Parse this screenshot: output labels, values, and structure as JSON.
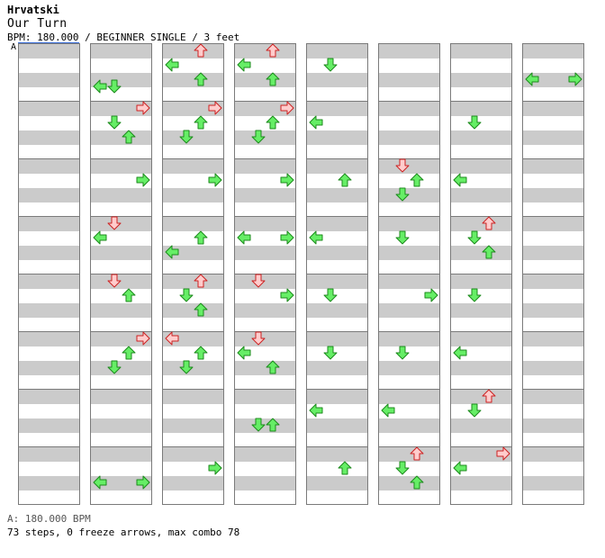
{
  "header": {
    "artist": "Hrvatski",
    "title": "Our Turn",
    "subtitle": "BPM: 180.000 / BEGINNER SINGLE / 3 feet",
    "marker": "A"
  },
  "footer": {
    "bpm_line": "A: 180.000 BPM",
    "stats": "73 steps, 0 freeze arrows, max combo 78"
  },
  "colors": {
    "quarter_fill": "#66ee66",
    "quarter_stroke": "#1c8a1c",
    "eighth_fill": "#ffcccc",
    "eighth_stroke": "#cc2222",
    "stripe": "#cbcbcb",
    "border": "#7a7a7a"
  },
  "chart_data": {
    "type": "step-chart",
    "columns": 8,
    "measures_per_column": 8,
    "lanes": [
      "left",
      "down",
      "up",
      "right"
    ],
    "notes": [
      {
        "col": 0,
        "m": 0,
        "t": 0,
        "arrows": "none"
      },
      {
        "col": 1,
        "m": 0,
        "t": 3,
        "arrows": "L,D",
        "type": "q"
      },
      {
        "col": 1,
        "m": 1,
        "t": 0.5,
        "arrows": "R",
        "type": "e"
      },
      {
        "col": 1,
        "m": 1,
        "t": 1.5,
        "arrows": "D",
        "type": "q"
      },
      {
        "col": 1,
        "m": 1,
        "t": 2.5,
        "arrows": "U",
        "type": "q"
      },
      {
        "col": 1,
        "m": 2,
        "t": 1.5,
        "arrows": "R",
        "type": "q"
      },
      {
        "col": 1,
        "m": 3,
        "t": 0.5,
        "arrows": "D",
        "type": "e"
      },
      {
        "col": 1,
        "m": 3,
        "t": 1.5,
        "arrows": "L",
        "type": "q"
      },
      {
        "col": 1,
        "m": 4,
        "t": 0.5,
        "arrows": "D",
        "type": "e"
      },
      {
        "col": 1,
        "m": 4,
        "t": 1.5,
        "arrows": "U",
        "type": "q"
      },
      {
        "col": 1,
        "m": 5,
        "t": 0.5,
        "arrows": "R",
        "type": "e"
      },
      {
        "col": 1,
        "m": 5,
        "t": 1.5,
        "arrows": "U",
        "type": "q"
      },
      {
        "col": 1,
        "m": 5,
        "t": 2.5,
        "arrows": "D",
        "type": "q"
      },
      {
        "col": 1,
        "m": 7,
        "t": 2.5,
        "arrows": "L,R",
        "type": "q"
      },
      {
        "col": 2,
        "m": 0,
        "t": 0.5,
        "arrows": "U",
        "type": "e"
      },
      {
        "col": 2,
        "m": 0,
        "t": 1.5,
        "arrows": "L",
        "type": "q"
      },
      {
        "col": 2,
        "m": 0,
        "t": 2.5,
        "arrows": "U",
        "type": "q"
      },
      {
        "col": 2,
        "m": 1,
        "t": 0.5,
        "arrows": "R",
        "type": "e"
      },
      {
        "col": 2,
        "m": 1,
        "t": 1.5,
        "arrows": "U",
        "type": "q"
      },
      {
        "col": 2,
        "m": 1,
        "t": 2.5,
        "arrows": "D",
        "type": "q"
      },
      {
        "col": 2,
        "m": 2,
        "t": 1.5,
        "arrows": "R",
        "type": "q"
      },
      {
        "col": 2,
        "m": 3,
        "t": 1.5,
        "arrows": "U",
        "type": "q"
      },
      {
        "col": 2,
        "m": 3,
        "t": 2.5,
        "arrows": "L",
        "type": "q"
      },
      {
        "col": 2,
        "m": 4,
        "t": 0.5,
        "arrows": "U",
        "type": "e"
      },
      {
        "col": 2,
        "m": 4,
        "t": 1.5,
        "arrows": "D",
        "type": "q"
      },
      {
        "col": 2,
        "m": 4,
        "t": 2.5,
        "arrows": "U",
        "type": "q"
      },
      {
        "col": 2,
        "m": 5,
        "t": 0.5,
        "arrows": "L",
        "type": "e"
      },
      {
        "col": 2,
        "m": 5,
        "t": 1.5,
        "arrows": "U",
        "type": "q"
      },
      {
        "col": 2,
        "m": 5,
        "t": 2.5,
        "arrows": "D",
        "type": "q"
      },
      {
        "col": 2,
        "m": 7,
        "t": 1.5,
        "arrows": "R",
        "type": "q"
      },
      {
        "col": 3,
        "m": 0,
        "t": 0.5,
        "arrows": "U",
        "type": "e"
      },
      {
        "col": 3,
        "m": 0,
        "t": 1.5,
        "arrows": "L",
        "type": "q"
      },
      {
        "col": 3,
        "m": 0,
        "t": 2.5,
        "arrows": "U",
        "type": "q"
      },
      {
        "col": 3,
        "m": 1,
        "t": 0.5,
        "arrows": "R",
        "type": "e"
      },
      {
        "col": 3,
        "m": 1,
        "t": 1.5,
        "arrows": "U",
        "type": "q"
      },
      {
        "col": 3,
        "m": 1,
        "t": 2.5,
        "arrows": "D",
        "type": "q"
      },
      {
        "col": 3,
        "m": 2,
        "t": 1.5,
        "arrows": "R",
        "type": "q"
      },
      {
        "col": 3,
        "m": 3,
        "t": 1.5,
        "arrows": "L,R",
        "type": "q"
      },
      {
        "col": 3,
        "m": 4,
        "t": 0.5,
        "arrows": "D",
        "type": "e"
      },
      {
        "col": 3,
        "m": 4,
        "t": 1.5,
        "arrows": "R",
        "type": "q"
      },
      {
        "col": 3,
        "m": 5,
        "t": 0.5,
        "arrows": "D",
        "type": "e"
      },
      {
        "col": 3,
        "m": 5,
        "t": 1.5,
        "arrows": "L",
        "type": "q"
      },
      {
        "col": 3,
        "m": 5,
        "t": 2.5,
        "arrows": "U",
        "type": "q"
      },
      {
        "col": 3,
        "m": 6,
        "t": 2.5,
        "arrows": "D,U",
        "type": "q"
      },
      {
        "col": 4,
        "m": 0,
        "t": 1.5,
        "arrows": "D",
        "type": "q"
      },
      {
        "col": 4,
        "m": 1,
        "t": 1.5,
        "arrows": "L",
        "type": "q"
      },
      {
        "col": 4,
        "m": 2,
        "t": 1.5,
        "arrows": "U",
        "type": "q"
      },
      {
        "col": 4,
        "m": 3,
        "t": 1.5,
        "arrows": "L",
        "type": "q"
      },
      {
        "col": 4,
        "m": 4,
        "t": 1.5,
        "arrows": "D",
        "type": "q"
      },
      {
        "col": 4,
        "m": 5,
        "t": 1.5,
        "arrows": "D",
        "type": "q"
      },
      {
        "col": 4,
        "m": 6,
        "t": 1.5,
        "arrows": "L",
        "type": "q"
      },
      {
        "col": 4,
        "m": 7,
        "t": 1.5,
        "arrows": "U",
        "type": "q"
      },
      {
        "col": 5,
        "m": 2,
        "t": 0.5,
        "arrows": "D",
        "type": "e"
      },
      {
        "col": 5,
        "m": 2,
        "t": 1.5,
        "arrows": "U",
        "type": "q"
      },
      {
        "col": 5,
        "m": 2,
        "t": 2.5,
        "arrows": "D",
        "type": "q"
      },
      {
        "col": 5,
        "m": 3,
        "t": 1.5,
        "arrows": "D",
        "type": "q"
      },
      {
        "col": 5,
        "m": 4,
        "t": 1.5,
        "arrows": "R",
        "type": "q"
      },
      {
        "col": 5,
        "m": 5,
        "t": 1.5,
        "arrows": "D",
        "type": "q"
      },
      {
        "col": 5,
        "m": 6,
        "t": 1.5,
        "arrows": "L",
        "type": "q"
      },
      {
        "col": 5,
        "m": 7,
        "t": 0.5,
        "arrows": "U",
        "type": "e"
      },
      {
        "col": 5,
        "m": 7,
        "t": 1.5,
        "arrows": "D",
        "type": "q"
      },
      {
        "col": 5,
        "m": 7,
        "t": 2.5,
        "arrows": "U",
        "type": "q"
      },
      {
        "col": 6,
        "m": 1,
        "t": 1.5,
        "arrows": "D",
        "type": "q"
      },
      {
        "col": 6,
        "m": 2,
        "t": 1.5,
        "arrows": "L",
        "type": "q"
      },
      {
        "col": 6,
        "m": 3,
        "t": 0.5,
        "arrows": "U",
        "type": "e"
      },
      {
        "col": 6,
        "m": 3,
        "t": 1.5,
        "arrows": "D",
        "type": "q"
      },
      {
        "col": 6,
        "m": 3,
        "t": 2.5,
        "arrows": "U",
        "type": "q"
      },
      {
        "col": 6,
        "m": 4,
        "t": 1.5,
        "arrows": "D",
        "type": "q"
      },
      {
        "col": 6,
        "m": 5,
        "t": 1.5,
        "arrows": "L",
        "type": "q"
      },
      {
        "col": 6,
        "m": 6,
        "t": 0.5,
        "arrows": "U",
        "type": "e"
      },
      {
        "col": 6,
        "m": 6,
        "t": 1.5,
        "arrows": "D",
        "type": "q"
      },
      {
        "col": 6,
        "m": 7,
        "t": 0.5,
        "arrows": "R",
        "type": "e"
      },
      {
        "col": 6,
        "m": 7,
        "t": 1.5,
        "arrows": "L",
        "type": "q"
      },
      {
        "col": 7,
        "m": 0,
        "t": 2.5,
        "arrows": "L,R",
        "type": "q"
      }
    ]
  }
}
